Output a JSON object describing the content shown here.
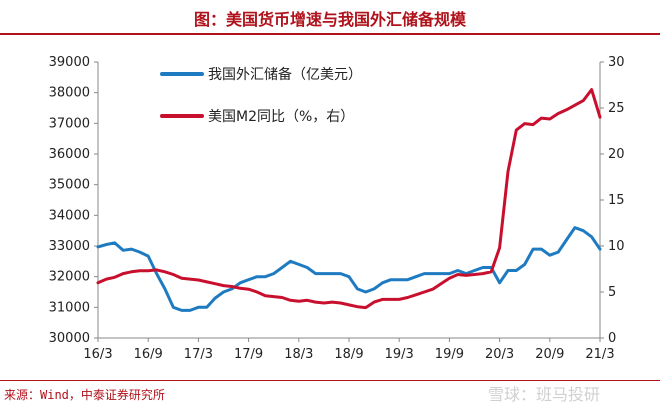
{
  "title": "图：美国货币增速与我国外汇储备规模",
  "source": "来源：Wind，中泰证券研究所",
  "watermark": "雪球：班马投研",
  "colors": {
    "accent": "#b0121b",
    "blue_series": "#1f7bc1",
    "red_series": "#c8102e"
  },
  "chart_data": {
    "type": "line",
    "x_tick_labels": [
      "16/3",
      "16/9",
      "17/3",
      "17/9",
      "18/3",
      "18/9",
      "19/3",
      "19/9",
      "20/3",
      "20/9",
      "21/3"
    ],
    "y_left": {
      "ylim": [
        30000,
        39000
      ],
      "ticks": [
        "30000",
        "31000",
        "32000",
        "33000",
        "34000",
        "35000",
        "36000",
        "37000",
        "38000",
        "39000"
      ]
    },
    "y_right": {
      "ylim": [
        0,
        30
      ],
      "ticks": [
        "0",
        "5",
        "10",
        "15",
        "20",
        "25",
        "30"
      ]
    },
    "legend_position": "top-left",
    "series": [
      {
        "name": "我国外汇储备（亿美元）",
        "axis": "left",
        "color": "#1f7bc1",
        "x": [
          "2016-03",
          "2016-04",
          "2016-05",
          "2016-06",
          "2016-07",
          "2016-08",
          "2016-09",
          "2016-10",
          "2016-11",
          "2016-12",
          "2017-01",
          "2017-02",
          "2017-03",
          "2017-04",
          "2017-05",
          "2017-06",
          "2017-07",
          "2017-08",
          "2017-09",
          "2017-10",
          "2017-11",
          "2017-12",
          "2018-01",
          "2018-02",
          "2018-03",
          "2018-04",
          "2018-05",
          "2018-06",
          "2018-07",
          "2018-08",
          "2018-09",
          "2018-10",
          "2018-11",
          "2018-12",
          "2019-01",
          "2019-02",
          "2019-03",
          "2019-04",
          "2019-05",
          "2019-06",
          "2019-07",
          "2019-08",
          "2019-09",
          "2019-10",
          "2019-11",
          "2019-12",
          "2020-01",
          "2020-02",
          "2020-03",
          "2020-04",
          "2020-05",
          "2020-06",
          "2020-07",
          "2020-08",
          "2020-09",
          "2020-10",
          "2020-11",
          "2020-12",
          "2021-01",
          "2021-02",
          "2021-03"
        ],
        "values": [
          32970,
          33050,
          33100,
          32860,
          32900,
          32800,
          32670,
          32100,
          31600,
          31000,
          30900,
          30900,
          31000,
          31000,
          31300,
          31500,
          31600,
          31800,
          31900,
          32000,
          32000,
          32100,
          32300,
          32500,
          32400,
          32300,
          32100,
          32100,
          32100,
          32100,
          32000,
          31600,
          31500,
          31600,
          31800,
          31900,
          31900,
          31900,
          32000,
          32100,
          32100,
          32100,
          32100,
          32200,
          32100,
          32200,
          32300,
          32300,
          31800,
          32200,
          32200,
          32400,
          32900,
          32900,
          32700,
          32800,
          33200,
          33600,
          33500,
          33300,
          32900
        ]
      },
      {
        "name": "美国M2同比（%，右）",
        "axis": "right",
        "color": "#c8102e",
        "x": [
          "2016-03",
          "2016-04",
          "2016-05",
          "2016-06",
          "2016-07",
          "2016-08",
          "2016-09",
          "2016-10",
          "2016-11",
          "2016-12",
          "2017-01",
          "2017-02",
          "2017-03",
          "2017-04",
          "2017-05",
          "2017-06",
          "2017-07",
          "2017-08",
          "2017-09",
          "2017-10",
          "2017-11",
          "2017-12",
          "2018-01",
          "2018-02",
          "2018-03",
          "2018-04",
          "2018-05",
          "2018-06",
          "2018-07",
          "2018-08",
          "2018-09",
          "2018-10",
          "2018-11",
          "2018-12",
          "2019-01",
          "2019-02",
          "2019-03",
          "2019-04",
          "2019-05",
          "2019-06",
          "2019-07",
          "2019-08",
          "2019-09",
          "2019-10",
          "2019-11",
          "2019-12",
          "2020-01",
          "2020-02",
          "2020-03",
          "2020-04",
          "2020-05",
          "2020-06",
          "2020-07",
          "2020-08",
          "2020-09",
          "2020-10",
          "2020-11",
          "2020-12",
          "2021-01",
          "2021-02",
          "2021-03"
        ],
        "values": [
          6.0,
          6.4,
          6.6,
          7.0,
          7.2,
          7.3,
          7.3,
          7.4,
          7.2,
          6.9,
          6.5,
          6.4,
          6.3,
          6.1,
          5.9,
          5.7,
          5.6,
          5.4,
          5.3,
          5.0,
          4.6,
          4.5,
          4.4,
          4.1,
          4.0,
          4.1,
          3.9,
          3.8,
          3.9,
          3.8,
          3.6,
          3.4,
          3.3,
          3.9,
          4.2,
          4.2,
          4.2,
          4.4,
          4.7,
          5.0,
          5.3,
          5.9,
          6.5,
          6.9,
          6.8,
          6.9,
          7.0,
          7.2,
          9.8,
          18.1,
          22.6,
          23.3,
          23.2,
          23.9,
          23.8,
          24.4,
          24.8,
          25.3,
          25.8,
          27.0,
          24.0
        ]
      }
    ]
  }
}
